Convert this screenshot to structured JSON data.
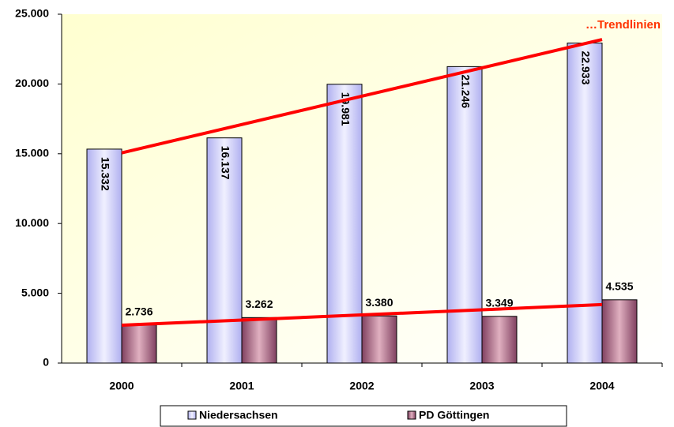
{
  "chart_data": {
    "type": "bar",
    "categories": [
      "2000",
      "2001",
      "2002",
      "2003",
      "2004"
    ],
    "series": [
      {
        "name": "Niedersachsen",
        "color": "#c8c8ff",
        "values": [
          15332,
          16137,
          19981,
          21246,
          22933
        ],
        "value_labels": [
          "15.332",
          "16.137",
          "19.981",
          "21.246",
          "22.933"
        ]
      },
      {
        "name": "PD Göttingen",
        "color": "#a05070",
        "values": [
          2736,
          3262,
          3380,
          3349,
          4535
        ],
        "value_labels": [
          "2.736",
          "3.262",
          "3.380",
          "3.349",
          "4.535"
        ]
      }
    ],
    "ylim": [
      0,
      25000
    ],
    "yticks": [
      0,
      {
        "value": 5000,
        "label": "5.000"
      },
      {
        "value": 10000,
        "label": "10.000"
      },
      {
        "value": 15000,
        "label": "15.000"
      },
      {
        "value": 20000,
        "label": "20.000"
      },
      {
        "value": 25000,
        "label": "25.000"
      }
    ],
    "annotation": "…Trendlinien",
    "trendlines": true,
    "trendline_color": "#ff0000",
    "grid": false
  }
}
